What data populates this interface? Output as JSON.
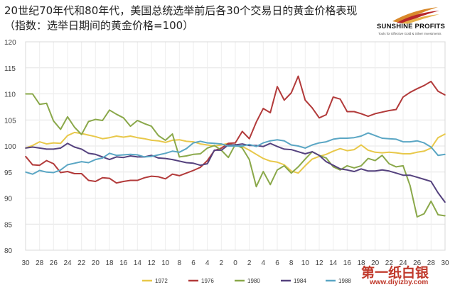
{
  "header": {
    "title": "20世纪70年代和80年代，美国总统选举前后各30个交易日的黄金价格表现",
    "subtitle": "（指数：选举日期间的黄金价格=100）"
  },
  "logo": {
    "name": "SUNSHINE PROFITS",
    "tagline": "Tools for Effective Gold & Silver Investments"
  },
  "watermark": {
    "text": "第一纸白银",
    "url": "www.diyizby.com"
  },
  "chart_data": {
    "type": "line",
    "x": [
      -30,
      -29,
      -28,
      -27,
      -26,
      -25,
      -24,
      -23,
      -22,
      -21,
      -20,
      -19,
      -18,
      -17,
      -16,
      -15,
      -14,
      -13,
      -12,
      -11,
      -10,
      -9,
      -8,
      -7,
      -6,
      -5,
      -4,
      -3,
      -2,
      -1,
      0,
      1,
      2,
      3,
      4,
      5,
      6,
      7,
      8,
      9,
      10,
      11,
      12,
      13,
      14,
      15,
      16,
      17,
      18,
      19,
      20,
      21,
      22,
      23,
      24,
      25,
      26,
      27,
      28,
      29,
      30
    ],
    "x_tick_values": [
      -30,
      -28,
      -26,
      -24,
      -22,
      -20,
      -18,
      -16,
      -14,
      -12,
      -10,
      -8,
      -6,
      -4,
      -2,
      0,
      2,
      4,
      6,
      8,
      10,
      12,
      14,
      16,
      18,
      20,
      22,
      24,
      26,
      28,
      30
    ],
    "x_tick_labels": [
      "30",
      "28",
      "26",
      "24",
      "22",
      "20",
      "18",
      "16",
      "14",
      "12",
      "10",
      "8",
      "6",
      "4",
      "2",
      "0",
      "2",
      "4",
      "6",
      "8",
      "10",
      "12",
      "14",
      "16",
      "18",
      "20",
      "22",
      "24",
      "26",
      "28",
      "30"
    ],
    "ylim": [
      80,
      120
    ],
    "y_ticks": [
      80,
      85,
      90,
      95,
      100,
      105,
      110,
      115,
      120
    ],
    "grid": true,
    "legend_position": "bottom",
    "series": [
      {
        "name": "1972",
        "color": "#e8c84a",
        "values": [
          99.6,
          100.1,
          100.8,
          100.4,
          100.6,
          100.5,
          102.0,
          102.6,
          102.4,
          102.1,
          101.8,
          101.4,
          101.6,
          101.9,
          101.7,
          101.9,
          101.6,
          101.4,
          101.1,
          101.0,
          100.7,
          101.1,
          101.2,
          100.9,
          100.8,
          100.4,
          100.2,
          100.0,
          100.2,
          100.5,
          100.0,
          99.9,
          99.2,
          98.4,
          97.6,
          97.1,
          96.9,
          96.4,
          95.2,
          94.8,
          96.2,
          97.5,
          98.0,
          98.4,
          99.0,
          99.5,
          99.1,
          99.3,
          100.2,
          99.2,
          98.8,
          98.7,
          98.8,
          98.7,
          98.5,
          98.5,
          98.8,
          99.0,
          99.6,
          101.6,
          102.3
        ]
      },
      {
        "name": "1976",
        "color": "#b23a3a",
        "values": [
          98.0,
          96.4,
          96.3,
          97.2,
          96.6,
          94.9,
          95.1,
          94.7,
          94.7,
          93.4,
          93.2,
          93.9,
          93.8,
          92.9,
          93.2,
          93.4,
          93.4,
          93.9,
          94.2,
          94.1,
          93.7,
          94.6,
          94.3,
          94.8,
          95.3,
          95.9,
          97.2,
          99.1,
          99.6,
          100.5,
          100.6,
          102.8,
          101.4,
          104.6,
          107.2,
          106.4,
          111.4,
          108.8,
          110.2,
          113.4,
          108.8,
          107.3,
          105.4,
          106.0,
          109.4,
          109.0,
          106.6,
          106.6,
          106.2,
          105.7,
          106.2,
          106.5,
          106.8,
          107.0,
          109.4,
          110.3,
          111.0,
          111.6,
          112.4,
          110.5,
          109.8
        ]
      },
      {
        "name": "1980",
        "color": "#8aa84a",
        "values": [
          110.0,
          110.0,
          108.0,
          108.2,
          104.8,
          103.2,
          105.6,
          103.6,
          102.2,
          104.7,
          105.1,
          104.9,
          106.9,
          106.1,
          105.4,
          103.8,
          104.9,
          104.3,
          103.8,
          102.0,
          101.1,
          102.3,
          97.9,
          98.1,
          98.4,
          98.5,
          99.6,
          100.1,
          99.2,
          97.8,
          100.3,
          99.6,
          97.4,
          92.2,
          95.1,
          92.6,
          95.4,
          96.2,
          94.8,
          96.0,
          97.5,
          98.9,
          98.2,
          97.7,
          96.0,
          95.4,
          96.2,
          95.8,
          96.2,
          97.6,
          97.2,
          98.2,
          96.6,
          96.0,
          96.2,
          92.4,
          86.4,
          87.0,
          89.4,
          86.8,
          86.6
        ]
      },
      {
        "name": "1984",
        "color": "#55427e",
        "values": [
          99.6,
          99.8,
          99.6,
          99.4,
          99.4,
          99.6,
          100.5,
          99.8,
          99.4,
          98.6,
          98.4,
          97.9,
          97.4,
          97.9,
          97.8,
          98.1,
          97.9,
          97.9,
          98.2,
          97.7,
          97.6,
          97.4,
          97.1,
          96.8,
          96.7,
          96.3,
          96.6,
          99.2,
          99.2,
          100.2,
          100.2,
          100.4,
          100.1,
          100.1,
          99.9,
          100.5,
          99.9,
          99.4,
          99.3,
          98.9,
          98.5,
          98.9,
          98.2,
          97.0,
          96.3,
          95.6,
          95.4,
          95.1,
          95.6,
          95.2,
          95.2,
          95.4,
          95.2,
          94.8,
          94.4,
          94.4,
          94.0,
          93.6,
          93.2,
          91.0,
          89.2
        ]
      },
      {
        "name": "1988",
        "color": "#5aa6c4",
        "values": [
          95.0,
          94.6,
          95.3,
          95.0,
          94.9,
          95.4,
          96.4,
          96.7,
          97.0,
          96.8,
          97.4,
          97.7,
          98.6,
          98.2,
          98.3,
          98.4,
          98.3,
          97.9,
          98.0,
          98.3,
          98.6,
          99.0,
          98.8,
          99.5,
          100.6,
          100.9,
          100.6,
          100.5,
          100.4,
          100.0,
          100.0,
          100.0,
          100.3,
          99.9,
          100.6,
          101.0,
          101.2,
          101.0,
          100.2,
          100.0,
          99.6,
          100.2,
          100.6,
          100.8,
          101.3,
          101.5,
          101.5,
          101.6,
          101.9,
          102.5,
          102.0,
          101.5,
          101.4,
          101.3,
          100.8,
          100.8,
          101.0,
          100.6,
          99.8,
          98.2,
          98.4
        ]
      }
    ]
  }
}
